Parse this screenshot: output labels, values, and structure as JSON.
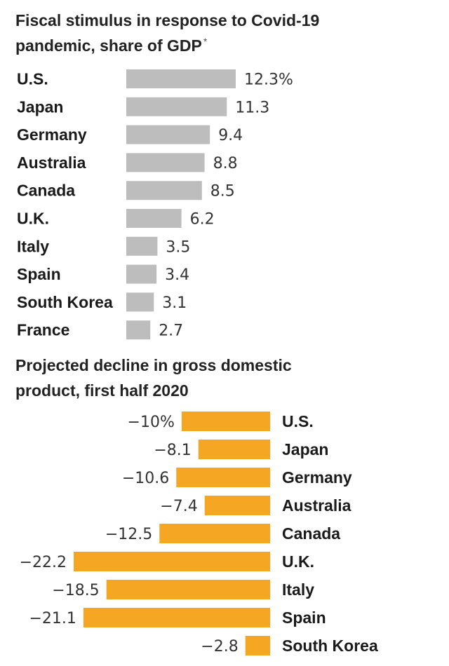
{
  "chart_data": [
    {
      "type": "bar",
      "orientation": "horizontal",
      "title": "Fiscal stimulus in response to Covid-19 pandemic, share of GDP",
      "title_lines": [
        "Fiscal stimulus in response to Covid-19",
        "pandemic, share of GDP"
      ],
      "title_footnote_mark": "*",
      "categories": [
        "U.S.",
        "Japan",
        "Germany",
        "Australia",
        "Canada",
        "U.K.",
        "Italy",
        "Spain",
        "South Korea",
        "France"
      ],
      "values": [
        12.3,
        11.3,
        9.4,
        8.8,
        8.5,
        6.2,
        3.5,
        3.4,
        3.1,
        2.7
      ],
      "value_labels": [
        "12.3%",
        "11.3",
        "9.4",
        "8.8",
        "8.5",
        "6.2",
        "3.5",
        "3.4",
        "3.1",
        "2.7"
      ],
      "unit": "%",
      "color": "#bdbdbd",
      "xlim": [
        0,
        12.3
      ]
    },
    {
      "type": "bar",
      "orientation": "horizontal",
      "title": "Projected decline in gross domestic product, first half 2020",
      "title_lines": [
        "Projected decline in gross domestic",
        "product, first half 2020"
      ],
      "categories": [
        "U.S.",
        "Japan",
        "Germany",
        "Australia",
        "Canada",
        "U.K.",
        "Italy",
        "Spain",
        "South Korea"
      ],
      "values": [
        -10,
        -8.1,
        -10.6,
        -7.4,
        -12.5,
        -22.2,
        -18.5,
        -21.1,
        -2.8
      ],
      "value_labels": [
        "−10%",
        "−8.1",
        "−10.6",
        "−7.4",
        "−12.5",
        "−22.2",
        "−18.5",
        "−21.1",
        "−2.8"
      ],
      "unit": "%",
      "color": "#f5a623",
      "xlim": [
        -22.2,
        0
      ]
    }
  ]
}
